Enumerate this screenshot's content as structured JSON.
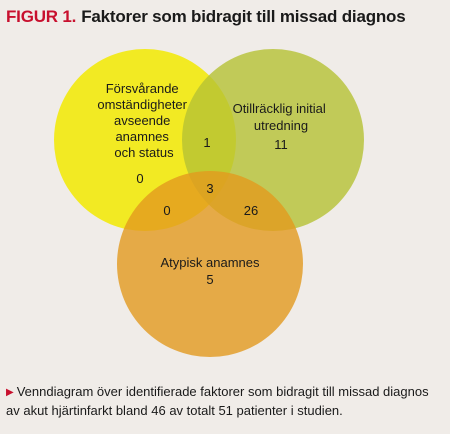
{
  "figure": {
    "label": "FIGUR 1.",
    "title": "Faktorer som bidragit till missad diagnos"
  },
  "venn": {
    "sets": [
      {
        "name": "Försvårande omständigheter avseende anamnes och status",
        "label_lines": [
          "Försvårande",
          "omständigheter",
          "avseende",
          "anamnes",
          "och status"
        ],
        "only_count": "0",
        "color": "#f2ea00"
      },
      {
        "name": "Otillräcklig initial utredning",
        "label_lines": [
          "Otillräcklig initial",
          "utredning"
        ],
        "only_count": "11",
        "color": "#b5c233"
      },
      {
        "name": "Atypisk anamnes",
        "label_lines": [
          "Atypisk anamnes"
        ],
        "only_count": "5",
        "color": "#e29a1e"
      }
    ],
    "overlaps": {
      "first_second": "1",
      "first_third": "0",
      "second_third": "26",
      "all_three": "3"
    }
  },
  "caption": {
    "marker": "▶",
    "text": "Venndiagram över identifierade faktorer som bidragit till missad diagnos av akut hjärtinfarkt bland 46 av totalt 51 patienter i studien."
  }
}
